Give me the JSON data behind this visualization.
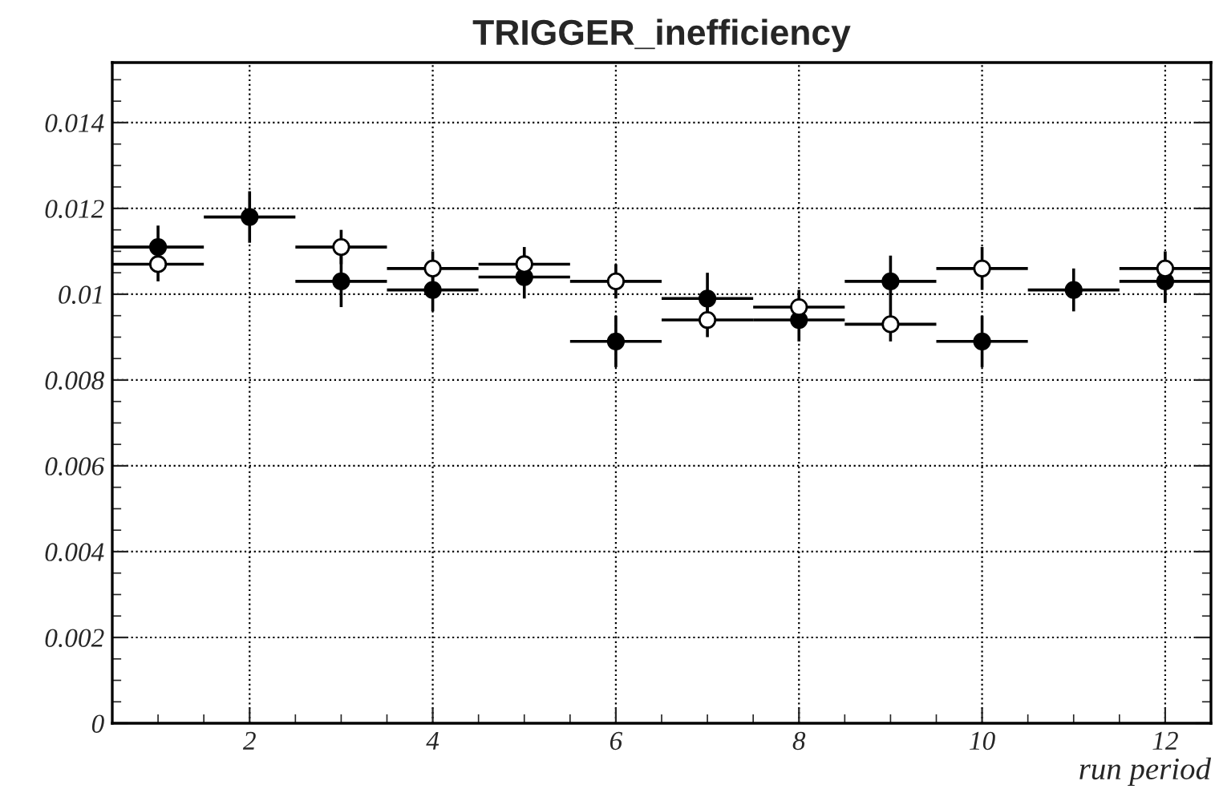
{
  "chart_data": {
    "type": "scatter",
    "title": "TRIGGER_inefficiency",
    "xlabel": "run period",
    "x": [
      1,
      2,
      3,
      4,
      5,
      6,
      7,
      8,
      9,
      10,
      11,
      12
    ],
    "xlim": [
      0.5,
      12.5
    ],
    "xticks": [
      2,
      4,
      6,
      8,
      10,
      12
    ],
    "ylim": [
      0,
      0.0154
    ],
    "yticks": [
      0,
      0.002,
      0.004,
      0.006,
      0.008,
      {
        "value": 0.01,
        "label": "0.01"
      },
      0.012,
      0.014
    ],
    "grid": true,
    "marker": "circle",
    "series": [
      {
        "color": "#000000",
        "values": [
          0.0111,
          0.0118,
          0.0103,
          0.0101,
          0.0104,
          0.0089,
          0.0099,
          0.0094,
          0.0103,
          0.0089,
          0.0101,
          0.0103
        ],
        "errors": [
          0.0005,
          0.0006,
          0.0006,
          0.0005,
          0.0005,
          0.0006,
          0.0006,
          0.0005,
          0.0006,
          0.0006,
          0.0005,
          0.0005
        ],
        "xerrors": [
          0.5,
          0.5,
          0.5,
          0.5,
          0.5,
          0.5,
          0.5,
          0.5,
          0.5,
          0.5,
          0.5,
          0.5
        ]
      },
      {
        "color": "#000000",
        "values": [
          0.0107,
          null,
          0.0111,
          0.0106,
          0.0107,
          0.0103,
          0.0094,
          0.0097,
          0.0093,
          0.0106,
          null,
          0.0106
        ],
        "errors": [
          0.0004,
          null,
          0.0004,
          0.0004,
          0.0004,
          0.0004,
          0.0004,
          0.0004,
          0.0004,
          0.0005,
          null,
          0.0004
        ],
        "xerrors": [
          0.5,
          null,
          0.5,
          0.5,
          0.5,
          0.5,
          0.5,
          0.5,
          0.5,
          0.5,
          null,
          0.5
        ]
      }
    ]
  }
}
